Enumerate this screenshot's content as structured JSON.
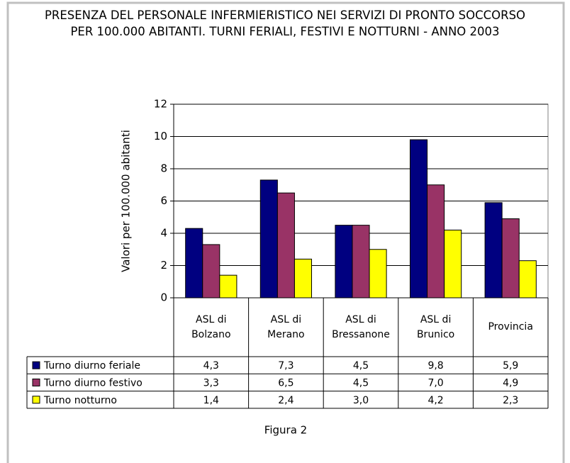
{
  "chart_data": {
    "type": "bar",
    "title": "PRESENZA DEL PERSONALE INFERMIERISTICO NEI SERVIZI DI PRONTO SOCCORSO PER 100.000 ABITANTI. TURNI FERIALI, FESTIVI E NOTTURNI - ANNO 2003",
    "y_label": "Valori per 100.000 abitanti",
    "caption": "Figura 2",
    "categories": [
      "ASL di Bolzano",
      "ASL di Merano",
      "ASL di Bressanone",
      "ASL di Brunico",
      "Provincia"
    ],
    "series": [
      {
        "name": "Turno diurno feriale",
        "color": "#000080",
        "values": [
          4.3,
          7.3,
          4.5,
          9.8,
          5.9
        ],
        "value_labels": [
          "4,3",
          "7,3",
          "4,5",
          "9,8",
          "5,9"
        ]
      },
      {
        "name": "Turno diurno festivo",
        "color": "#993366",
        "values": [
          3.3,
          6.5,
          4.5,
          7.0,
          4.9
        ],
        "value_labels": [
          "3,3",
          "6,5",
          "4,5",
          "7,0",
          "4,9"
        ]
      },
      {
        "name": "Turno notturno",
        "color": "#ffff00",
        "values": [
          1.4,
          2.4,
          3.0,
          4.2,
          2.3
        ],
        "value_labels": [
          "1,4",
          "2,4",
          "3,0",
          "4,2",
          "2,3"
        ]
      }
    ],
    "ylim": [
      0,
      12
    ],
    "yticks": [
      0,
      2,
      4,
      6,
      8,
      10,
      12
    ],
    "grid": true
  }
}
